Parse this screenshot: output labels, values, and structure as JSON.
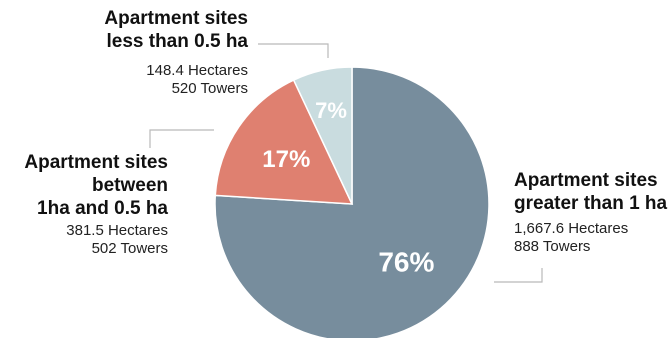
{
  "chart_data": {
    "type": "pie",
    "slices": [
      {
        "name_lines": [
          "Apartment sites",
          "greater than 1 ha"
        ],
        "value": 76,
        "label": "76%",
        "hectares": "1,667.6 Hectares",
        "towers": "888 Towers",
        "color": "#778d9d"
      },
      {
        "name_lines": [
          "Apartment sites",
          "between",
          "1ha and 0.5 ha"
        ],
        "value": 17,
        "label": "17%",
        "hectares": "381.5 Hectares",
        "towers": "502 Towers",
        "color": "#df8070"
      },
      {
        "name_lines": [
          "Apartment sites",
          "less than 0.5 ha"
        ],
        "value": 7,
        "label": "7%",
        "hectares": "148.4 Hectares",
        "towers": "520 Towers",
        "color": "#c9dcdf"
      }
    ],
    "leader_color": "#b9b9b9"
  }
}
